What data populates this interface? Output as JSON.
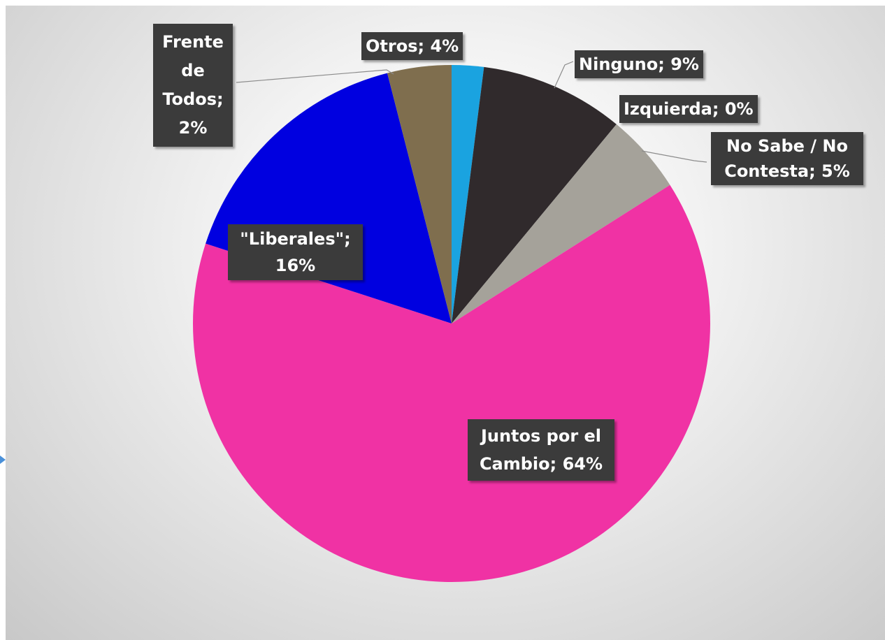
{
  "chart_data": {
    "type": "pie",
    "title": "",
    "slices": [
      {
        "label": "Frente de Todos",
        "value": 2,
        "display": "Frente de Todos; 2%",
        "color": "#1aa3e0"
      },
      {
        "label": "Ninguno",
        "value": 9,
        "display": "Ninguno; 9%",
        "color": "#302a2c"
      },
      {
        "label": "Izquierda",
        "value": 0,
        "display": "Izquierda; 0%",
        "color": "#c00000"
      },
      {
        "label": "No Sabe / No Contesta",
        "value": 5,
        "display": "No Sabe / No Contesta; 5%",
        "color": "#a5a29a"
      },
      {
        "label": "Juntos por el Cambio",
        "value": 64,
        "display": "Juntos por el Cambio; 64%",
        "color": "#f032a4"
      },
      {
        "label": "\"Liberales\"",
        "value": 16,
        "display": "\"Liberales\"; 16%",
        "color": "#0000e0"
      },
      {
        "label": "Otros",
        "value": 4,
        "display": "Otros; 4%",
        "color": "#7f6e4e"
      }
    ],
    "legend": "none"
  },
  "labels": {
    "frente": "Frente de Todos; 2%",
    "otros": "Otros; 4%",
    "ninguno": "Ninguno; 9%",
    "izquierda": "Izquierda; 0%",
    "nosabe": "No Sabe / No Contesta; 5%",
    "liberales": "\"Liberales\"; 16%",
    "juntos": "Juntos por el Cambio; 64%"
  }
}
